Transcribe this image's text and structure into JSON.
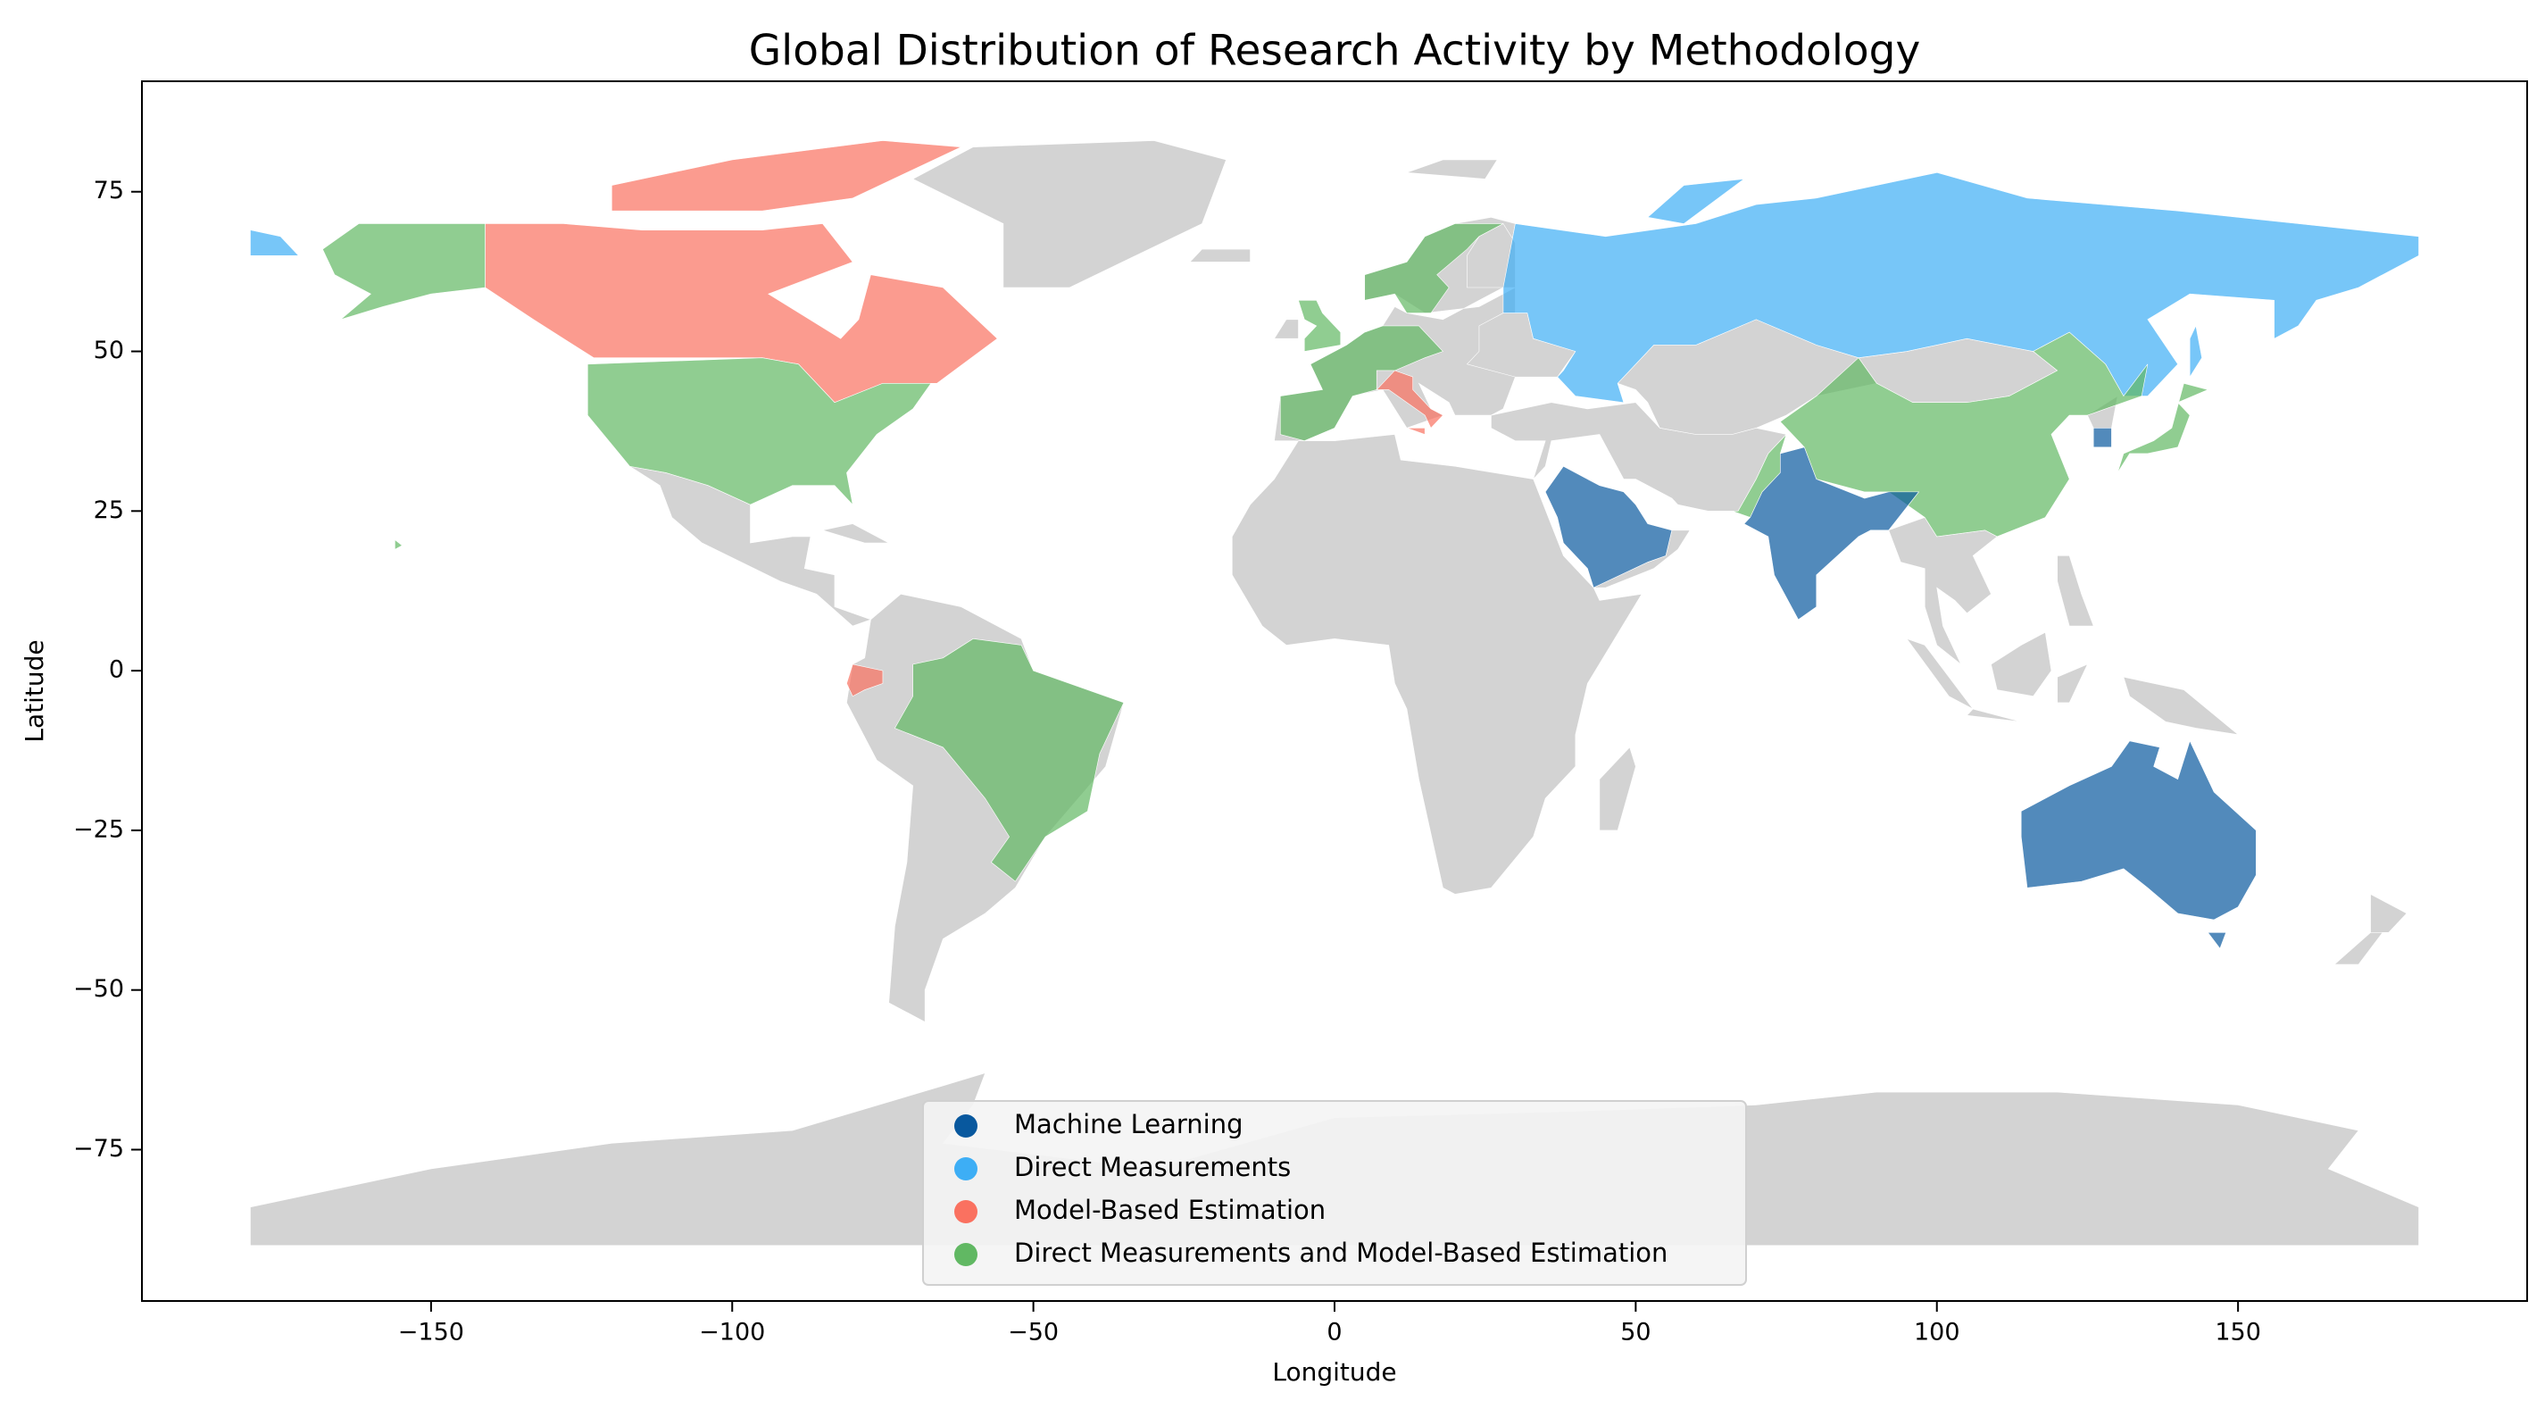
{
  "chart_data": {
    "type": "map",
    "title": "Global Distribution of Research Activity by Methodology",
    "xlabel": "Longitude",
    "ylabel": "Latitude",
    "xlim": [
      -198,
      198
    ],
    "ylim": [
      -98.7,
      92.3
    ],
    "xticks": [
      {
        "value": -150,
        "label": "−150"
      },
      {
        "value": -100,
        "label": "−100"
      },
      {
        "value": -50,
        "label": "−50"
      },
      0,
      50,
      100,
      150
    ],
    "yticks": [
      {
        "value": -75,
        "label": "−75"
      },
      {
        "value": -50,
        "label": "−50"
      },
      {
        "value": -25,
        "label": "−25"
      },
      0,
      25,
      50,
      75
    ],
    "series": [
      {
        "name": "Machine Learning",
        "color": "#08589e"
      },
      {
        "name": "Direct Measurements",
        "color": "#3daef5"
      },
      {
        "name": "Model-Based Estimation",
        "color": "#fa7160"
      },
      {
        "name": "Direct Measurements and Model-Based Estimation",
        "color": "#61b863"
      }
    ],
    "no_data_color": "#d3d3d3",
    "legend": "lower center"
  }
}
